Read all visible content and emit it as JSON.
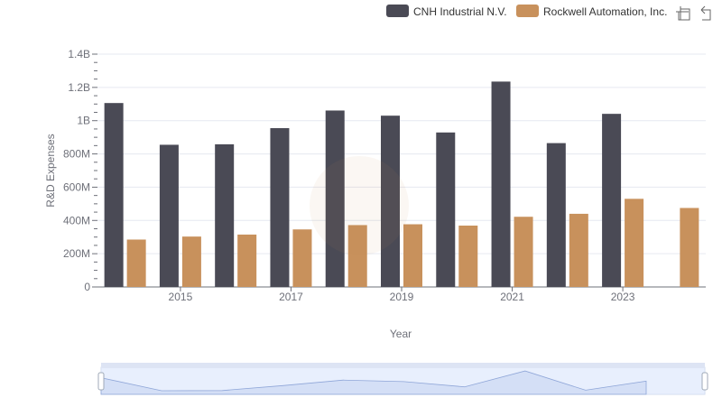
{
  "chart_data": {
    "type": "bar",
    "title": "",
    "xlabel": "Year",
    "ylabel": "R&D Expenses",
    "categories": [
      "2014",
      "2015",
      "2016",
      "2017",
      "2018",
      "2019",
      "2020",
      "2021",
      "2022",
      "2023",
      "2024"
    ],
    "x_tick_labels": [
      "2015",
      "2017",
      "2019",
      "2021",
      "2023"
    ],
    "y_tick_labels": [
      "0",
      "200M",
      "400M",
      "600M",
      "800M",
      "1B",
      "1.2B",
      "1.4B"
    ],
    "ylim": [
      0,
      1400000000
    ],
    "grid": true,
    "legend_position": "top-right",
    "series": [
      {
        "name": "CNH Industrial N.V.",
        "color": "#4a4a55",
        "values": [
          1106000000,
          855000000,
          858000000,
          955000000,
          1061000000,
          1030000000,
          929000000,
          1235000000,
          865000000,
          1041000000,
          null
        ]
      },
      {
        "name": "Rockwell Automation, Inc.",
        "color": "#c8915c",
        "values": [
          285000000,
          303000000,
          315000000,
          346000000,
          372000000,
          377000000,
          369000000,
          422000000,
          440000000,
          530000000,
          475000000
        ]
      }
    ]
  },
  "toolbox": {
    "zoom_icon": "zoom-area-icon",
    "restore_icon": "restore-icon"
  }
}
